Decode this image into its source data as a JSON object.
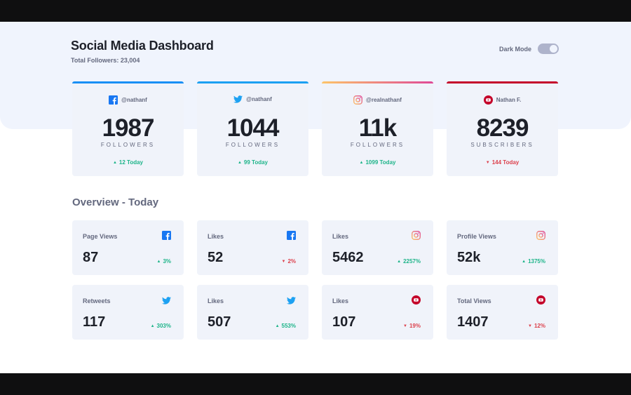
{
  "header": {
    "title": "Social Media Dashboard",
    "total_followers": "Total Followers: 23,004"
  },
  "dark_mode": {
    "label": "Dark Mode",
    "enabled": false
  },
  "platforms": [
    {
      "name": "facebook",
      "handle": "@nathanf",
      "count": "1987",
      "unit": "FOLLOWERS",
      "change": "12 Today",
      "trend": "up",
      "color": "#198ff5"
    },
    {
      "name": "twitter",
      "handle": "@nathanf",
      "count": "1044",
      "unit": "FOLLOWERS",
      "change": "99 Today",
      "trend": "up",
      "color": "#1ca0f2"
    },
    {
      "name": "instagram",
      "handle": "@realnathanf",
      "count": "11k",
      "unit": "FOLLOWERS",
      "change": "1099 Today",
      "trend": "up",
      "color": "#df4996"
    },
    {
      "name": "youtube",
      "handle": "Nathan F.",
      "count": "8239",
      "unit": "SUBSCRIBERS",
      "change": "144 Today",
      "trend": "down",
      "color": "#c4032a"
    }
  ],
  "overview": {
    "title": "Overview - Today",
    "cards": [
      {
        "label": "Page Views",
        "platform": "facebook",
        "value": "87",
        "change": "3%",
        "trend": "up"
      },
      {
        "label": "Likes",
        "platform": "facebook",
        "value": "52",
        "change": "2%",
        "trend": "down"
      },
      {
        "label": "Likes",
        "platform": "instagram",
        "value": "5462",
        "change": "2257%",
        "trend": "up"
      },
      {
        "label": "Profile Views",
        "platform": "instagram",
        "value": "52k",
        "change": "1375%",
        "trend": "up"
      },
      {
        "label": "Retweets",
        "platform": "twitter",
        "value": "117",
        "change": "303%",
        "trend": "up"
      },
      {
        "label": "Likes",
        "platform": "twitter",
        "value": "507",
        "change": "553%",
        "trend": "up"
      },
      {
        "label": "Likes",
        "platform": "youtube",
        "value": "107",
        "change": "19%",
        "trend": "down"
      },
      {
        "label": "Total Views",
        "platform": "youtube",
        "value": "1407",
        "change": "12%",
        "trend": "down"
      }
    ]
  },
  "colors": {
    "up": "#1db489",
    "down": "#dc414c",
    "background_top": "#f0f4fd",
    "card": "#f0f3fa",
    "instagram_gradient": [
      "#fdc468",
      "#df4996"
    ]
  },
  "icons": {
    "facebook": "facebook-icon",
    "twitter": "twitter-icon",
    "instagram": "instagram-icon",
    "youtube": "youtube-icon"
  }
}
